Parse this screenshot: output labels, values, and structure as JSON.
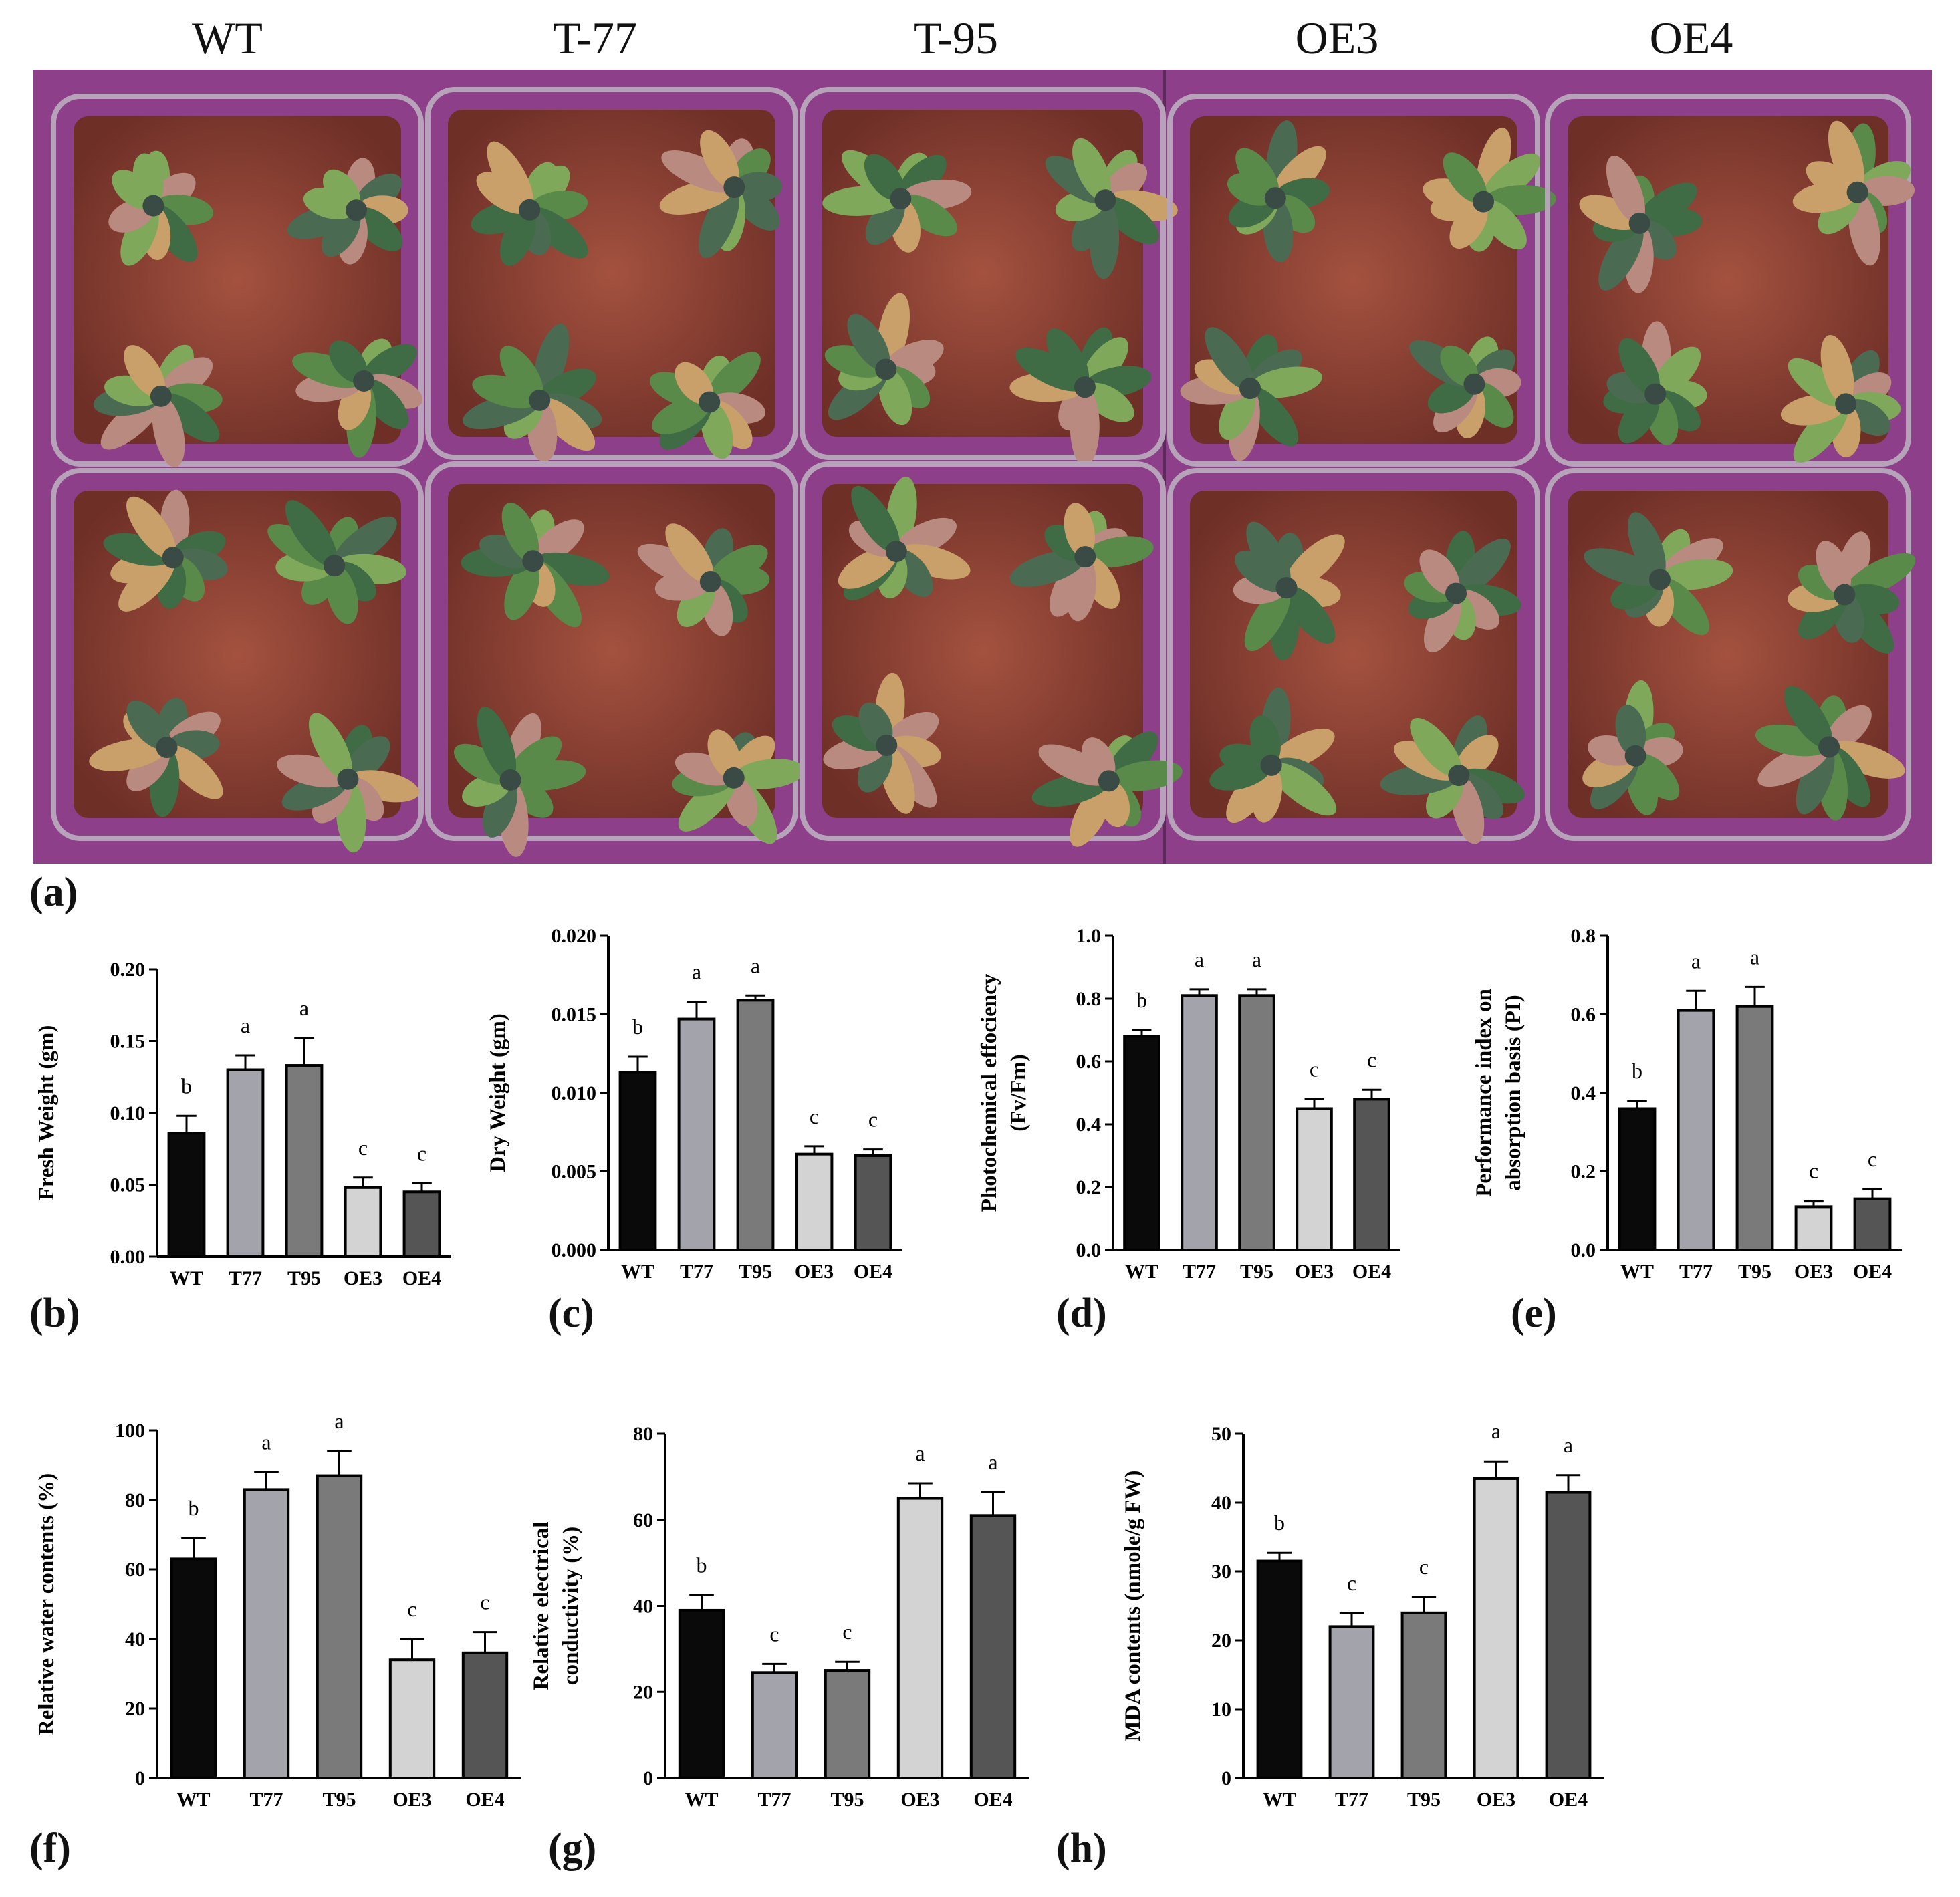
{
  "photo": {
    "column_labels": [
      "WT",
      "T-77",
      "T-95",
      "OE3",
      "OE4"
    ]
  },
  "panel_letters": [
    "(a)",
    "(b)",
    "(c)",
    "(d)",
    "(e)",
    "(f)",
    "(g)",
    "(h)"
  ],
  "colors": {
    "WT": "#0a0a0a",
    "T77": "#a3a3ab",
    "T95": "#7a7a7a",
    "OE3": "#d3d3d3",
    "OE4": "#555555",
    "background": "#8e3f8a"
  },
  "chart_data": [
    {
      "id": "b",
      "type": "bar",
      "categories": [
        "WT",
        "T77",
        "T95",
        "OE3",
        "OE4"
      ],
      "values": [
        0.086,
        0.13,
        0.133,
        0.048,
        0.045
      ],
      "errors": [
        0.012,
        0.01,
        0.019,
        0.007,
        0.006
      ],
      "letters": [
        "b",
        "a",
        "a",
        "c",
        "c"
      ],
      "ylabel": "Fresh Weight (gm)",
      "ylim": [
        0,
        0.2
      ],
      "yticks": [
        "0.00",
        "0.05",
        "0.10",
        "0.15",
        "0.20"
      ]
    },
    {
      "id": "c",
      "type": "bar",
      "categories": [
        "WT",
        "T77",
        "T95",
        "OE3",
        "OE4"
      ],
      "values": [
        0.0113,
        0.0147,
        0.0159,
        0.0061,
        0.006
      ],
      "errors": [
        0.001,
        0.0011,
        0.0003,
        0.0005,
        0.0004
      ],
      "letters": [
        "b",
        "a",
        "a",
        "c",
        "c"
      ],
      "ylabel": "Dry Weight (gm)",
      "ylim": [
        0,
        0.02
      ],
      "yticks": [
        "0.000",
        "0.005",
        "0.010",
        "0.015",
        "0.020"
      ]
    },
    {
      "id": "d",
      "type": "bar",
      "categories": [
        "WT",
        "T77",
        "T95",
        "OE3",
        "OE4"
      ],
      "values": [
        0.68,
        0.81,
        0.81,
        0.45,
        0.48
      ],
      "errors": [
        0.02,
        0.02,
        0.02,
        0.03,
        0.03
      ],
      "letters": [
        "b",
        "a",
        "a",
        "c",
        "c"
      ],
      "ylabel": [
        "Photochemical effociency",
        "(Fv/Fm)"
      ],
      "ylim": [
        0,
        1.0
      ],
      "yticks": [
        "0.0",
        "0.2",
        "0.4",
        "0.6",
        "0.8",
        "1.0"
      ]
    },
    {
      "id": "e",
      "type": "bar",
      "categories": [
        "WT",
        "T77",
        "T95",
        "OE3",
        "OE4"
      ],
      "values": [
        0.36,
        0.61,
        0.62,
        0.11,
        0.13
      ],
      "errors": [
        0.02,
        0.05,
        0.05,
        0.015,
        0.025
      ],
      "letters": [
        "b",
        "a",
        "a",
        "c",
        "c"
      ],
      "ylabel": [
        "Performance index on",
        "absorption basis (PI)"
      ],
      "ylim": [
        0,
        0.8
      ],
      "yticks": [
        "0.0",
        "0.2",
        "0.4",
        "0.6",
        "0.8"
      ]
    },
    {
      "id": "f",
      "type": "bar",
      "categories": [
        "WT",
        "T77",
        "T95",
        "OE3",
        "OE4"
      ],
      "values": [
        63,
        83,
        87,
        34,
        36
      ],
      "errors": [
        6,
        5,
        7,
        6,
        6
      ],
      "letters": [
        "b",
        "a",
        "a",
        "c",
        "c"
      ],
      "ylabel": "Relative water contents (%)",
      "ylim": [
        0,
        100
      ],
      "yticks": [
        "0",
        "20",
        "40",
        "60",
        "80",
        "100"
      ]
    },
    {
      "id": "g",
      "type": "bar",
      "categories": [
        "WT",
        "T77",
        "T95",
        "OE3",
        "OE4"
      ],
      "values": [
        39,
        24.5,
        25,
        65,
        61
      ],
      "errors": [
        3.5,
        2.0,
        2.0,
        3.5,
        5.5
      ],
      "letters": [
        "b",
        "c",
        "c",
        "a",
        "a"
      ],
      "ylabel": [
        "Relative electrical",
        "conductivity (%)"
      ],
      "ylim": [
        0,
        80
      ],
      "yticks": [
        "0",
        "20",
        "40",
        "60",
        "80"
      ]
    },
    {
      "id": "h",
      "type": "bar",
      "categories": [
        "WT",
        "T77",
        "T95",
        "OE3",
        "OE4"
      ],
      "values": [
        31.5,
        22,
        24,
        43.5,
        41.5
      ],
      "errors": [
        1.2,
        2.0,
        2.3,
        2.5,
        2.5
      ],
      "letters": [
        "b",
        "c",
        "c",
        "a",
        "a"
      ],
      "ylabel": "MDA contents (nmole/g FW)",
      "ylim": [
        0,
        50
      ],
      "yticks": [
        "0",
        "10",
        "20",
        "30",
        "40",
        "50"
      ]
    }
  ]
}
